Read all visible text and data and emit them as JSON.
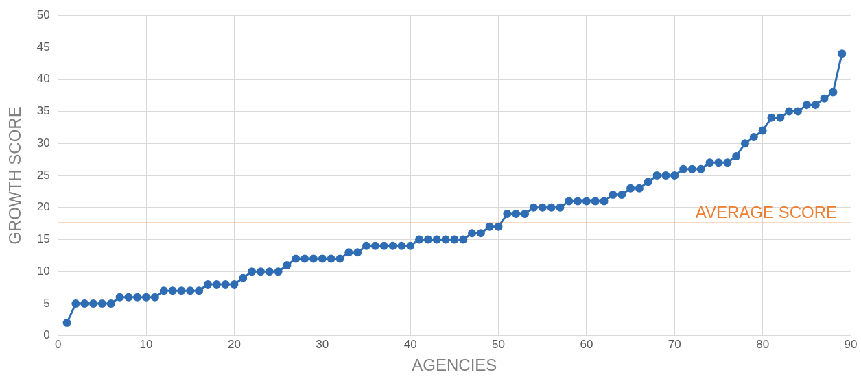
{
  "chart_data": {
    "type": "line",
    "xlabel": "AGENCIES",
    "ylabel": "GROWTH SCORE",
    "x": [
      1,
      2,
      3,
      4,
      5,
      6,
      7,
      8,
      9,
      10,
      11,
      12,
      13,
      14,
      15,
      16,
      17,
      18,
      19,
      20,
      21,
      22,
      23,
      24,
      25,
      26,
      27,
      28,
      29,
      30,
      31,
      32,
      33,
      34,
      35,
      36,
      37,
      38,
      39,
      40,
      41,
      42,
      43,
      44,
      45,
      46,
      47,
      48,
      49,
      50,
      51,
      52,
      53,
      54,
      55,
      56,
      57,
      58,
      59,
      60,
      61,
      62,
      63,
      64,
      65,
      66,
      67,
      68,
      69,
      70,
      71,
      72,
      73,
      74,
      75,
      76,
      77,
      78,
      79,
      80,
      81,
      82,
      83,
      84,
      85,
      86,
      87,
      88,
      89
    ],
    "series": [
      {
        "color": "#2e6db4",
        "values": [
          2,
          5,
          5,
          5,
          5,
          5,
          6,
          6,
          6,
          6,
          6,
          7,
          7,
          7,
          7,
          7,
          8,
          8,
          8,
          8,
          9,
          10,
          10,
          10,
          10,
          11,
          12,
          12,
          12,
          12,
          12,
          12,
          13,
          13,
          14,
          14,
          14,
          14,
          14,
          14,
          15,
          15,
          15,
          15,
          15,
          15,
          16,
          16,
          17,
          17,
          19,
          19,
          19,
          20,
          20,
          20,
          20,
          21,
          21,
          21,
          21,
          21,
          22,
          22,
          23,
          23,
          24,
          25,
          25,
          25,
          26,
          26,
          26,
          27,
          27,
          27,
          28,
          30,
          31,
          32,
          34,
          34,
          35,
          35,
          36,
          36,
          37,
          38,
          44
        ]
      }
    ],
    "xlim": [
      0,
      90
    ],
    "xticks": [
      0,
      10,
      20,
      30,
      40,
      50,
      60,
      70,
      80,
      90
    ],
    "ylim": [
      0,
      50
    ],
    "yticks": [
      0,
      5,
      10,
      15,
      20,
      25,
      30,
      35,
      40,
      45,
      50
    ],
    "ref_lines": [
      {
        "axis": "y",
        "value": 17.6,
        "label": "AVERAGE SCORE",
        "color": "#ed7d31"
      }
    ],
    "grid": true,
    "legend": false,
    "marker": "circle",
    "line_style": "solid"
  }
}
